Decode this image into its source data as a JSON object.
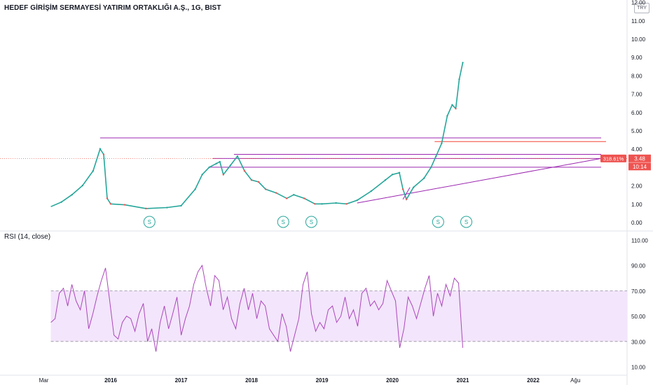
{
  "header": {
    "title": "HEDEF GİRİŞİM SERMAYESİ YATIRIM ORTAKLIĞI A.Ş., 1G, BIST",
    "currency": "TRY"
  },
  "colors": {
    "up": "#26a69a",
    "down": "#ef5350",
    "trend_line": "#9c27b0",
    "horizontal_line": "#9c27b0",
    "red_line": "#f44336",
    "rsi_line": "#ab47bc",
    "rsi_band": "#f3e5fb",
    "split_marker": "#26a69a"
  },
  "chart_data": [
    {
      "type": "line",
      "title": "HEDEF GİRİŞİM SERMAYESİ YATIRIM ORTAKLIĞI A.Ş., 1G, BIST",
      "ylim": [
        0,
        12
      ],
      "y_ticks": [
        "0.00",
        "1.00",
        "2.00",
        "3.00",
        "4.00",
        "5.00",
        "6.00",
        "7.00",
        "8.00",
        "9.00",
        "10.00",
        "11.00",
        "12.00"
      ],
      "x_ticks": [
        "Mar",
        "2016",
        "2017",
        "2018",
        "2019",
        "2020",
        "2021",
        "2022",
        "Ağu"
      ],
      "x": [
        2015.15,
        2015.3,
        2015.45,
        2015.6,
        2015.75,
        2015.85,
        2015.9,
        2015.95,
        2016.0,
        2016.2,
        2016.5,
        2016.8,
        2017.0,
        2017.2,
        2017.3,
        2017.4,
        2017.5,
        2017.55,
        2017.6,
        2017.7,
        2017.8,
        2017.9,
        2018.0,
        2018.1,
        2018.2,
        2018.35,
        2018.5,
        2018.6,
        2018.75,
        2018.9,
        2019.0,
        2019.2,
        2019.35,
        2019.5,
        2019.7,
        2019.9,
        2020.0,
        2020.1,
        2020.15,
        2020.2,
        2020.3,
        2020.45,
        2020.55,
        2020.62,
        2020.7,
        2020.78,
        2020.85,
        2020.9,
        2020.95,
        2021.0
      ],
      "series": [
        {
          "values": [
            0.85,
            1.1,
            1.5,
            2.0,
            2.8,
            4.0,
            3.7,
            1.3,
            1.0,
            0.95,
            0.75,
            0.8,
            0.9,
            1.8,
            2.6,
            3.0,
            3.2,
            3.3,
            2.6,
            3.1,
            3.6,
            2.8,
            2.3,
            2.2,
            1.8,
            1.6,
            1.3,
            1.5,
            1.3,
            1.0,
            1.0,
            1.05,
            1.0,
            1.2,
            1.7,
            2.3,
            2.6,
            2.7,
            1.8,
            1.25,
            1.9,
            2.4,
            3.0,
            3.6,
            4.3,
            5.8,
            6.4,
            6.2,
            7.8,
            8.7
          ]
        }
      ],
      "horizontal_levels": [
        4.6,
        3.7,
        3.48,
        3.0
      ],
      "red_level": 4.4,
      "price_label": "3.48",
      "percent_label": "318.61%",
      "time_label": "10:14",
      "split_markers": [
        "S",
        "S",
        "S",
        "S",
        "S"
      ]
    },
    {
      "type": "line",
      "title": "RSI (14, close)",
      "ylim": [
        5,
        115
      ],
      "y_ticks": [
        "10.00",
        "30.00",
        "50.00",
        "70.00",
        "90.00",
        "110.00"
      ],
      "band": [
        30,
        70
      ],
      "series": [
        {
          "name": "RSI (14, close)",
          "values": [
            45,
            48,
            68,
            72,
            58,
            75,
            62,
            55,
            70,
            40,
            52,
            66,
            78,
            88,
            62,
            35,
            32,
            45,
            50,
            48,
            38,
            52,
            60,
            30,
            40,
            22,
            45,
            58,
            40,
            52,
            65,
            35,
            48,
            58,
            75,
            85,
            90,
            72,
            58,
            82,
            78,
            55,
            65,
            48,
            40,
            60,
            72,
            55,
            68,
            48,
            62,
            58,
            40,
            35,
            30,
            52,
            42,
            22,
            35,
            48,
            75,
            85,
            52,
            38,
            45,
            40,
            55,
            58,
            45,
            50,
            65,
            48,
            55,
            42,
            68,
            72,
            58,
            62,
            55,
            60,
            78,
            70,
            62,
            25,
            40,
            65,
            58,
            48,
            60,
            72,
            82,
            50,
            68,
            58,
            75,
            66,
            80,
            76,
            25
          ]
        }
      ]
    }
  ]
}
